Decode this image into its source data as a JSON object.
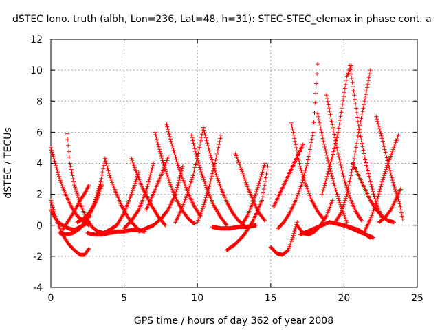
{
  "chart_data": {
    "type": "scatter",
    "title": "dSTEC Iono. truth (albh, Lon=236, Lat=48, h=31): STEC-STEC_elemax in phase cont. a",
    "xlabel": "GPS time / hours of day 362 of year 2008",
    "ylabel": "dSTEC  / TECUs",
    "xlim": [
      0,
      25
    ],
    "ylim": [
      -4,
      12
    ],
    "xticks": [
      0,
      5,
      10,
      15,
      20,
      25
    ],
    "yticks": [
      -4,
      -2,
      0,
      2,
      4,
      6,
      8,
      10,
      12
    ],
    "grid": true,
    "marker": "+",
    "color": "#ff0000",
    "series": [
      {
        "x": [
          0.0,
          0.3,
          0.6,
          1.0,
          1.4,
          1.8,
          2.2,
          2.6
        ],
        "y": [
          5.0,
          4.0,
          3.0,
          2.0,
          1.2,
          0.6,
          0.3,
          0.0
        ]
      },
      {
        "x": [
          0.0,
          0.4,
          0.8,
          1.2,
          1.6,
          2.0,
          2.3,
          2.6
        ],
        "y": [
          1.6,
          0.3,
          -0.6,
          -1.2,
          -1.6,
          -1.9,
          -1.9,
          -1.5
        ]
      },
      {
        "x": [
          0.0,
          0.2,
          0.5,
          0.8,
          1.2,
          1.6,
          2.0,
          2.4
        ],
        "y": [
          1.0,
          0.6,
          0.2,
          0.0,
          -0.2,
          -0.3,
          -0.1,
          0.1
        ]
      },
      {
        "x": [
          1.1,
          1.3,
          1.6,
          2.0,
          2.4,
          2.8,
          3.2,
          3.6,
          4.0
        ],
        "y": [
          5.9,
          4.0,
          2.6,
          1.4,
          0.5,
          -0.1,
          -0.4,
          -0.5,
          -0.3
        ]
      },
      {
        "x": [
          0.8,
          1.2,
          1.6,
          2.0,
          2.4,
          2.6
        ],
        "y": [
          -0.3,
          0.3,
          0.9,
          1.6,
          2.2,
          2.6
        ]
      },
      {
        "x": [
          0.6,
          1.0,
          1.5,
          2.0,
          2.5,
          3.0,
          3.4
        ],
        "y": [
          -0.5,
          -0.6,
          -0.5,
          -0.2,
          0.4,
          1.4,
          2.6
        ]
      },
      {
        "x": [
          1.8,
          2.2,
          2.6,
          3.0,
          3.2,
          3.5
        ],
        "y": [
          0.2,
          0.4,
          0.8,
          1.4,
          1.8,
          2.6
        ]
      },
      {
        "x": [
          2.6,
          3.0,
          3.4,
          3.7
        ],
        "y": [
          0.5,
          1.5,
          2.8,
          4.3
        ]
      },
      {
        "x": [
          3.7,
          4.0,
          4.4,
          4.8,
          5.2,
          5.6,
          6.0,
          6.4
        ],
        "y": [
          4.3,
          3.2,
          2.2,
          1.3,
          0.6,
          0.1,
          -0.3,
          -0.4
        ]
      },
      {
        "x": [
          2.5,
          3.0,
          3.5,
          4.0,
          4.5,
          5.0,
          5.5,
          6.0
        ],
        "y": [
          -0.5,
          -0.6,
          -0.6,
          -0.5,
          -0.4,
          -0.4,
          -0.3,
          -0.3
        ]
      },
      {
        "x": [
          4.0,
          4.5,
          5.0,
          5.5,
          6.0
        ],
        "y": [
          -0.3,
          0.0,
          0.8,
          2.0,
          3.4
        ]
      },
      {
        "x": [
          5.5,
          5.8,
          6.2,
          6.8,
          7.3,
          7.8
        ],
        "y": [
          4.3,
          3.5,
          2.5,
          1.4,
          0.6,
          0.0
        ]
      },
      {
        "x": [
          5.0,
          5.5,
          6.0,
          6.5,
          7.0
        ],
        "y": [
          -0.2,
          0.3,
          1.0,
          2.2,
          4.0
        ]
      },
      {
        "x": [
          6.5,
          6.8,
          7.2,
          7.6,
          8.0
        ],
        "y": [
          1.0,
          1.6,
          2.5,
          3.4,
          4.4
        ]
      },
      {
        "x": [
          7.1,
          7.4,
          7.8,
          8.2,
          8.6,
          9.0,
          9.4,
          9.8
        ],
        "y": [
          6.0,
          4.9,
          3.6,
          2.5,
          1.6,
          0.9,
          0.4,
          0.1
        ]
      },
      {
        "x": [
          7.9,
          8.2,
          8.6,
          9.0,
          9.4,
          9.8,
          10.2
        ],
        "y": [
          6.5,
          5.4,
          4.1,
          3.0,
          2.0,
          1.2,
          0.6
        ]
      },
      {
        "x": [
          6.0,
          6.5,
          7.0,
          7.5,
          8.0,
          8.5,
          9.0
        ],
        "y": [
          -0.4,
          -0.2,
          0.0,
          0.4,
          1.0,
          2.0,
          3.8
        ]
      },
      {
        "x": [
          8.5,
          8.9,
          9.3,
          9.7,
          10.1,
          10.4
        ],
        "y": [
          0.2,
          1.0,
          2.0,
          3.2,
          4.8,
          6.3
        ]
      },
      {
        "x": [
          9.6,
          9.9,
          10.3,
          10.7,
          11.1,
          11.6,
          12.0
        ],
        "y": [
          5.8,
          4.6,
          3.3,
          2.2,
          1.3,
          0.5,
          0.0
        ]
      },
      {
        "x": [
          10.4,
          10.8,
          11.2,
          11.6,
          12.0,
          12.4,
          12.8,
          13.2
        ],
        "y": [
          6.3,
          4.8,
          3.5,
          2.4,
          1.5,
          0.8,
          0.3,
          0.0
        ]
      },
      {
        "x": [
          10.0,
          10.4,
          10.8,
          11.2,
          11.6
        ],
        "y": [
          0.2,
          1.2,
          2.5,
          4.0,
          5.8
        ]
      },
      {
        "x": [
          12.0,
          12.6,
          13.2,
          13.8,
          14.4,
          14.8
        ],
        "y": [
          -1.6,
          -1.2,
          -0.6,
          0.3,
          1.6,
          3.8
        ]
      },
      {
        "x": [
          12.6,
          13.0,
          13.4,
          13.8,
          14.2,
          14.6
        ],
        "y": [
          4.6,
          3.6,
          2.5,
          1.6,
          0.8,
          0.3
        ]
      },
      {
        "x": [
          13.0,
          13.4,
          13.8,
          14.2,
          14.6
        ],
        "y": [
          0.0,
          0.6,
          1.5,
          2.7,
          4.0
        ]
      },
      {
        "x": [
          11.0,
          11.6,
          12.2,
          12.8,
          13.4,
          14.0
        ],
        "y": [
          -0.1,
          -0.2,
          -0.2,
          -0.1,
          -0.1,
          0.0
        ]
      },
      {
        "x": [
          15.0,
          15.4,
          15.8,
          16.2,
          16.5,
          16.8
        ],
        "y": [
          -1.4,
          -1.8,
          -1.9,
          -1.6,
          -0.8,
          0.2
        ]
      },
      {
        "x": [
          15.2,
          15.6,
          16.0,
          16.4,
          16.8,
          17.2
        ],
        "y": [
          1.2,
          2.0,
          2.8,
          3.6,
          4.4,
          5.2
        ]
      },
      {
        "x": [
          15.5,
          15.9,
          16.3,
          16.7,
          17.1,
          17.5,
          17.9,
          18.2
        ],
        "y": [
          -0.2,
          0.2,
          0.8,
          1.6,
          2.6,
          4.0,
          6.0,
          10.4
        ]
      },
      {
        "x": [
          16.4,
          16.7,
          17.0,
          17.4,
          17.8,
          18.2,
          18.6
        ],
        "y": [
          6.6,
          5.2,
          3.8,
          2.6,
          1.6,
          0.9,
          0.4
        ]
      },
      {
        "x": [
          16.8,
          17.2,
          17.6,
          18.0,
          18.4,
          18.8,
          19.2
        ],
        "y": [
          0.0,
          -0.5,
          -0.6,
          -0.4,
          0.0,
          0.6,
          1.6
        ]
      },
      {
        "x": [
          18.2,
          18.6,
          19.0,
          19.4,
          19.8,
          20.2
        ],
        "y": [
          7.2,
          5.4,
          3.8,
          2.4,
          1.2,
          0.2
        ]
      },
      {
        "x": [
          18.5,
          18.8,
          19.2,
          19.6,
          19.9,
          20.2,
          20.5
        ],
        "y": [
          2.0,
          3.0,
          4.4,
          6.0,
          7.8,
          9.6,
          10.3
        ]
      },
      {
        "x": [
          18.8,
          19.2,
          19.6,
          20.0,
          20.4,
          20.8,
          21.2
        ],
        "y": [
          8.4,
          6.5,
          4.6,
          3.0,
          1.8,
          0.9,
          0.3
        ]
      },
      {
        "x": [
          19.4,
          19.8,
          20.2,
          20.6,
          21.0,
          21.4,
          21.8
        ],
        "y": [
          0.2,
          0.8,
          2.0,
          3.8,
          6.0,
          8.0,
          10.0
        ]
      },
      {
        "x": [
          20.4,
          20.7,
          21.0,
          21.4,
          21.8,
          22.2,
          22.6
        ],
        "y": [
          10.3,
          8.4,
          6.4,
          4.4,
          2.8,
          1.4,
          0.5
        ]
      },
      {
        "x": [
          20.6,
          21.0,
          21.4,
          21.8,
          22.2,
          22.6,
          23.0,
          23.4
        ],
        "y": [
          4.0,
          3.2,
          2.4,
          1.6,
          1.0,
          0.6,
          0.3,
          0.2
        ]
      },
      {
        "x": [
          21.4,
          21.8,
          22.2,
          22.6,
          23.0,
          23.4,
          23.7
        ],
        "y": [
          -0.4,
          0.4,
          1.4,
          2.8,
          4.0,
          5.0,
          5.8
        ]
      },
      {
        "x": [
          22.2,
          22.6,
          23.0,
          23.4,
          23.8,
          24.0
        ],
        "y": [
          7.0,
          5.6,
          4.0,
          2.6,
          1.4,
          0.4
        ]
      },
      {
        "x": [
          22.4,
          22.8,
          23.2,
          23.6,
          23.9
        ],
        "y": [
          0.2,
          0.5,
          1.0,
          1.8,
          2.4
        ]
      },
      {
        "x": [
          17.0,
          18.0,
          19.0,
          20.0,
          21.0,
          21.8
        ],
        "y": [
          -0.6,
          -0.2,
          0.2,
          0.0,
          -0.3,
          -0.8
        ]
      },
      {
        "x": [
          20.0,
          20.5,
          21.0,
          21.5,
          22.0
        ],
        "y": [
          0.0,
          -0.2,
          -0.4,
          -0.6,
          -0.8
        ]
      }
    ]
  }
}
